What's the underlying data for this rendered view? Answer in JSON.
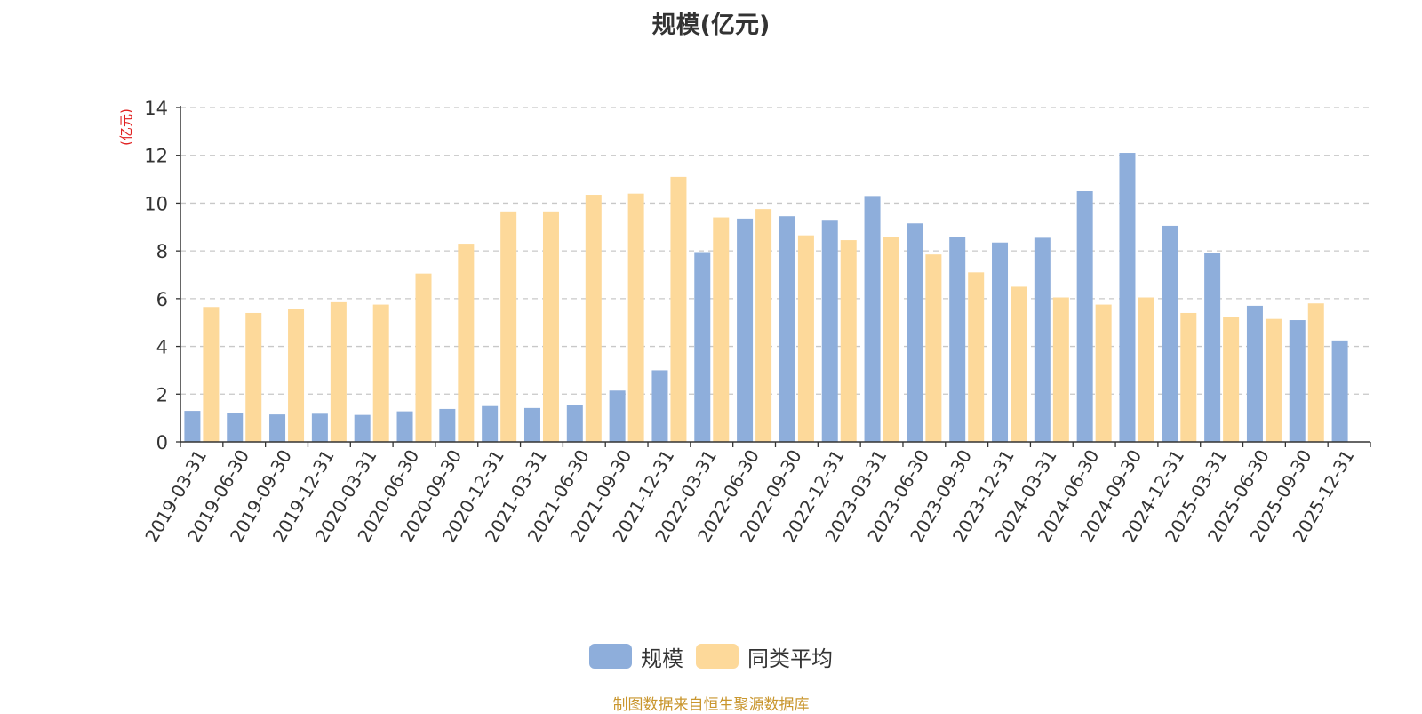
{
  "chart_data": {
    "type": "bar",
    "title": "规模(亿元)",
    "ylabel": "(亿元)",
    "ylim": [
      0,
      14
    ],
    "yticks": [
      0,
      2,
      4,
      6,
      8,
      10,
      12,
      14
    ],
    "grid": true,
    "legend_position": "bottom-center",
    "categories": [
      "2019-03-31",
      "2019-06-30",
      "2019-09-30",
      "2019-12-31",
      "2020-03-31",
      "2020-06-30",
      "2020-09-30",
      "2020-12-31",
      "2021-03-31",
      "2021-06-30",
      "2021-09-30",
      "2021-12-31",
      "2022-03-31",
      "2022-06-30",
      "2022-09-30",
      "2022-12-31",
      "2023-03-31",
      "2023-06-30",
      "2023-09-30",
      "2023-12-31",
      "2024-03-31",
      "2024-06-30",
      "2024-09-30",
      "2024-12-31",
      "2025-03-31",
      "2025-06-30",
      "2025-09-30",
      "2025-12-31"
    ],
    "series": [
      {
        "name": "规模",
        "color": "#8eaedb",
        "values": [
          1.3,
          1.2,
          1.15,
          1.18,
          1.13,
          1.28,
          1.38,
          1.5,
          1.42,
          1.55,
          2.15,
          3.0,
          7.95,
          9.35,
          9.45,
          9.3,
          10.3,
          9.15,
          8.6,
          8.35,
          8.55,
          10.5,
          12.1,
          9.05,
          7.9,
          5.7,
          5.1,
          4.25
        ]
      },
      {
        "name": "同类平均",
        "color": "#fdd99a",
        "values": [
          5.65,
          5.4,
          5.55,
          5.85,
          5.75,
          7.05,
          8.3,
          9.65,
          9.65,
          10.35,
          10.4,
          11.1,
          9.4,
          9.75,
          8.65,
          8.45,
          8.6,
          7.85,
          7.1,
          6.5,
          6.05,
          5.75,
          6.05,
          5.4,
          5.25,
          5.15,
          5.8,
          null
        ]
      }
    ]
  },
  "source_note": "制图数据来自恒生聚源数据库"
}
